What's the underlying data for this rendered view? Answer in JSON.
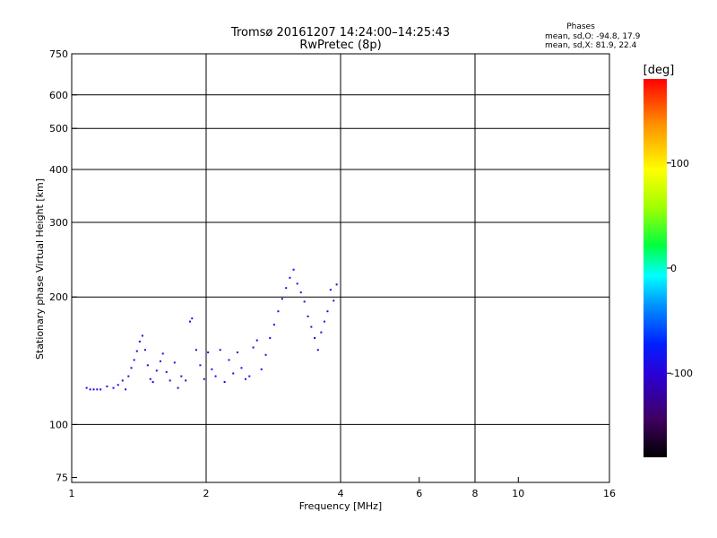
{
  "header": {
    "title_line1": "Tromsø 20161207 14:24:00–14:25:43",
    "title_line2": "RwPretec (8p)",
    "phases_title": "Phases",
    "phases_line1": "mean, sd,O: -94.8, 17.9",
    "phases_line2": "mean, sd,X:  81.9, 22.4"
  },
  "colorbar": {
    "label": "[deg]",
    "range": [
      -180,
      180
    ],
    "ticks": [
      {
        "value": 100,
        "label": "100"
      },
      {
        "value": 0,
        "label": "0"
      },
      {
        "value": -100,
        "label": "-100"
      }
    ]
  },
  "chart_data": {
    "type": "scatter",
    "xlabel": "Frequency [MHz]",
    "ylabel": "Stationary phase Virtual Height [km]",
    "xscale": "log",
    "yscale": "log",
    "xlim": [
      1,
      16
    ],
    "ylim": [
      73,
      750
    ],
    "grid": true,
    "x_ticks": [
      {
        "value": 1,
        "label": "1"
      },
      {
        "value": 2,
        "label": "2"
      },
      {
        "value": 4,
        "label": "4"
      },
      {
        "value": 6,
        "label": "6"
      },
      {
        "value": 8,
        "label": "8"
      },
      {
        "value": 10,
        "label": "10"
      },
      {
        "value": 16,
        "label": "16"
      }
    ],
    "x_gridlines": [
      2,
      4,
      8,
      16
    ],
    "y_ticks": [
      {
        "value": 75,
        "label": "75"
      },
      {
        "value": 100,
        "label": "100"
      },
      {
        "value": 200,
        "label": "200"
      },
      {
        "value": 300,
        "label": "300"
      },
      {
        "value": 400,
        "label": "400"
      },
      {
        "value": 500,
        "label": "500"
      },
      {
        "value": 600,
        "label": "600"
      },
      {
        "value": 750,
        "label": "750"
      }
    ],
    "y_gridlines": [
      100,
      200,
      300,
      400,
      500,
      600,
      750
    ],
    "points": [
      {
        "x": 1.08,
        "y": 122,
        "phase": -95
      },
      {
        "x": 1.1,
        "y": 121,
        "phase": -95
      },
      {
        "x": 1.12,
        "y": 121,
        "phase": -97
      },
      {
        "x": 1.14,
        "y": 121,
        "phase": -92
      },
      {
        "x": 1.16,
        "y": 121,
        "phase": -96
      },
      {
        "x": 1.2,
        "y": 123,
        "phase": -94
      },
      {
        "x": 1.24,
        "y": 122,
        "phase": -100
      },
      {
        "x": 1.27,
        "y": 124,
        "phase": -95
      },
      {
        "x": 1.3,
        "y": 127,
        "phase": -98
      },
      {
        "x": 1.32,
        "y": 121,
        "phase": -93
      },
      {
        "x": 1.34,
        "y": 130,
        "phase": -96
      },
      {
        "x": 1.36,
        "y": 136,
        "phase": -95
      },
      {
        "x": 1.38,
        "y": 142,
        "phase": -94
      },
      {
        "x": 1.4,
        "y": 149,
        "phase": -97
      },
      {
        "x": 1.42,
        "y": 157,
        "phase": -95
      },
      {
        "x": 1.44,
        "y": 162,
        "phase": -96
      },
      {
        "x": 1.46,
        "y": 150,
        "phase": -100
      },
      {
        "x": 1.48,
        "y": 138,
        "phase": -95
      },
      {
        "x": 1.5,
        "y": 128,
        "phase": -94
      },
      {
        "x": 1.52,
        "y": 126,
        "phase": -96
      },
      {
        "x": 1.55,
        "y": 134,
        "phase": -95
      },
      {
        "x": 1.58,
        "y": 141,
        "phase": -98
      },
      {
        "x": 1.6,
        "y": 147,
        "phase": -94
      },
      {
        "x": 1.63,
        "y": 133,
        "phase": -95
      },
      {
        "x": 1.66,
        "y": 127,
        "phase": -92
      },
      {
        "x": 1.7,
        "y": 140,
        "phase": -95
      },
      {
        "x": 1.73,
        "y": 122,
        "phase": -102
      },
      {
        "x": 1.76,
        "y": 130,
        "phase": -96
      },
      {
        "x": 1.8,
        "y": 127,
        "phase": -97
      },
      {
        "x": 1.84,
        "y": 175,
        "phase": -95
      },
      {
        "x": 1.86,
        "y": 178,
        "phase": -99
      },
      {
        "x": 1.9,
        "y": 150,
        "phase": -95
      },
      {
        "x": 1.94,
        "y": 138,
        "phase": -94
      },
      {
        "x": 1.98,
        "y": 128,
        "phase": -96
      },
      {
        "x": 2.02,
        "y": 148,
        "phase": -95
      },
      {
        "x": 2.06,
        "y": 135,
        "phase": -93
      },
      {
        "x": 2.1,
        "y": 130,
        "phase": -97
      },
      {
        "x": 2.15,
        "y": 150,
        "phase": -95
      },
      {
        "x": 2.2,
        "y": 126,
        "phase": -96
      },
      {
        "x": 2.25,
        "y": 142,
        "phase": -95
      },
      {
        "x": 2.3,
        "y": 132,
        "phase": -98
      },
      {
        "x": 2.35,
        "y": 148,
        "phase": -94
      },
      {
        "x": 2.4,
        "y": 136,
        "phase": -95
      },
      {
        "x": 2.45,
        "y": 128,
        "phase": -92
      },
      {
        "x": 2.5,
        "y": 130,
        "phase": -95
      },
      {
        "x": 2.55,
        "y": 152,
        "phase": -96
      },
      {
        "x": 2.6,
        "y": 158,
        "phase": -94
      },
      {
        "x": 2.66,
        "y": 135,
        "phase": -97
      },
      {
        "x": 2.72,
        "y": 146,
        "phase": -95
      },
      {
        "x": 2.78,
        "y": 160,
        "phase": -93
      },
      {
        "x": 2.84,
        "y": 172,
        "phase": -95
      },
      {
        "x": 2.9,
        "y": 185,
        "phase": -96
      },
      {
        "x": 2.96,
        "y": 198,
        "phase": -95
      },
      {
        "x": 3.02,
        "y": 210,
        "phase": -94
      },
      {
        "x": 3.08,
        "y": 222,
        "phase": -95
      },
      {
        "x": 3.14,
        "y": 232,
        "phase": -96
      },
      {
        "x": 3.2,
        "y": 215,
        "phase": -95
      },
      {
        "x": 3.26,
        "y": 205,
        "phase": -94
      },
      {
        "x": 3.32,
        "y": 195,
        "phase": -97
      },
      {
        "x": 3.38,
        "y": 180,
        "phase": -95
      },
      {
        "x": 3.44,
        "y": 170,
        "phase": -96
      },
      {
        "x": 3.5,
        "y": 160,
        "phase": -95
      },
      {
        "x": 3.56,
        "y": 150,
        "phase": -98
      },
      {
        "x": 3.62,
        "y": 165,
        "phase": -94
      },
      {
        "x": 3.68,
        "y": 175,
        "phase": -95
      },
      {
        "x": 3.74,
        "y": 185,
        "phase": -96
      },
      {
        "x": 3.8,
        "y": 208,
        "phase": -95
      },
      {
        "x": 3.86,
        "y": 196,
        "phase": -93
      },
      {
        "x": 3.92,
        "y": 214,
        "phase": -95
      }
    ]
  }
}
